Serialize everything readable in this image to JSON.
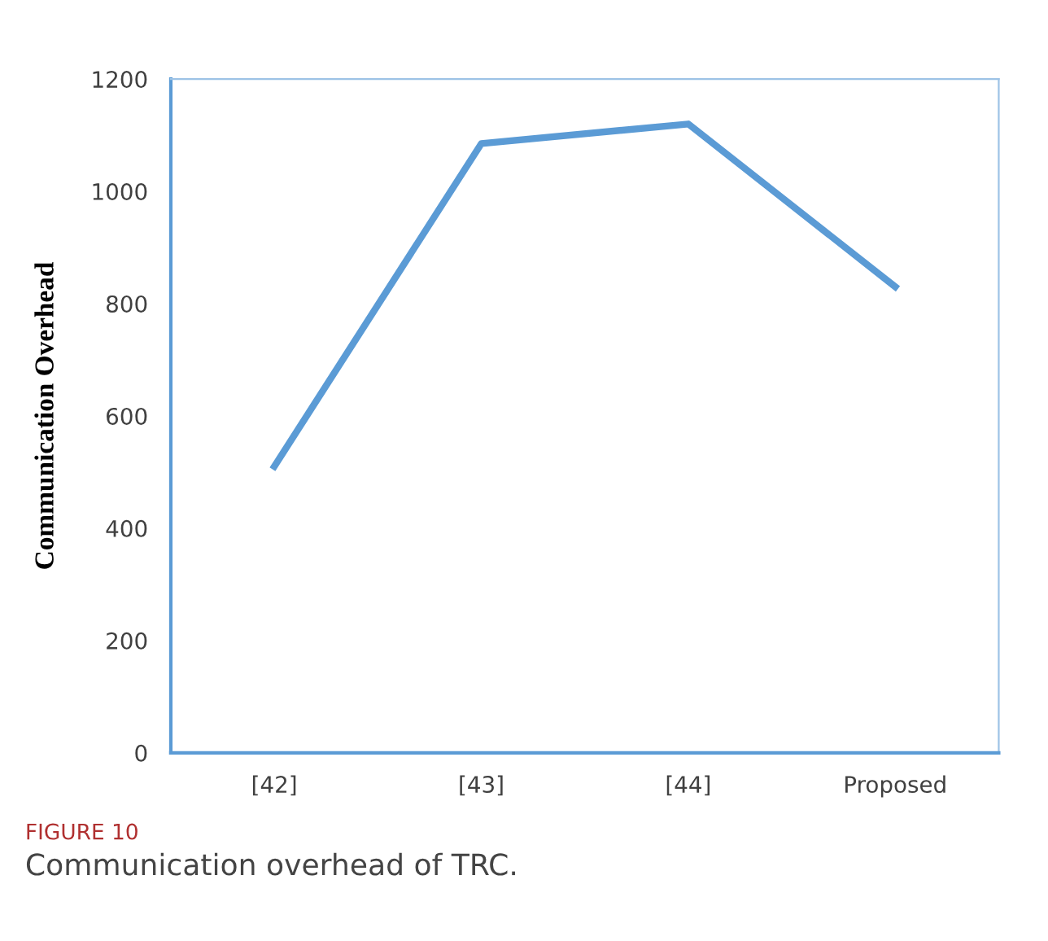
{
  "chart_data": {
    "type": "line",
    "title": "FIGURE 10",
    "subtitle": "Communication overhead of TRC.",
    "ylabel": "Communication Overhead",
    "categories": [
      "[42]",
      "[43]",
      "[44]",
      "Proposed"
    ],
    "series": [
      {
        "color": "#5b9bd5",
        "values": [
          510,
          1085,
          1120,
          830
        ]
      }
    ],
    "ylim": [
      0,
      1200
    ],
    "yticks": [
      0,
      200,
      400,
      600,
      800,
      1000,
      1200
    ],
    "grid": false,
    "legend": false,
    "marker": "none",
    "line_style": "solid"
  }
}
